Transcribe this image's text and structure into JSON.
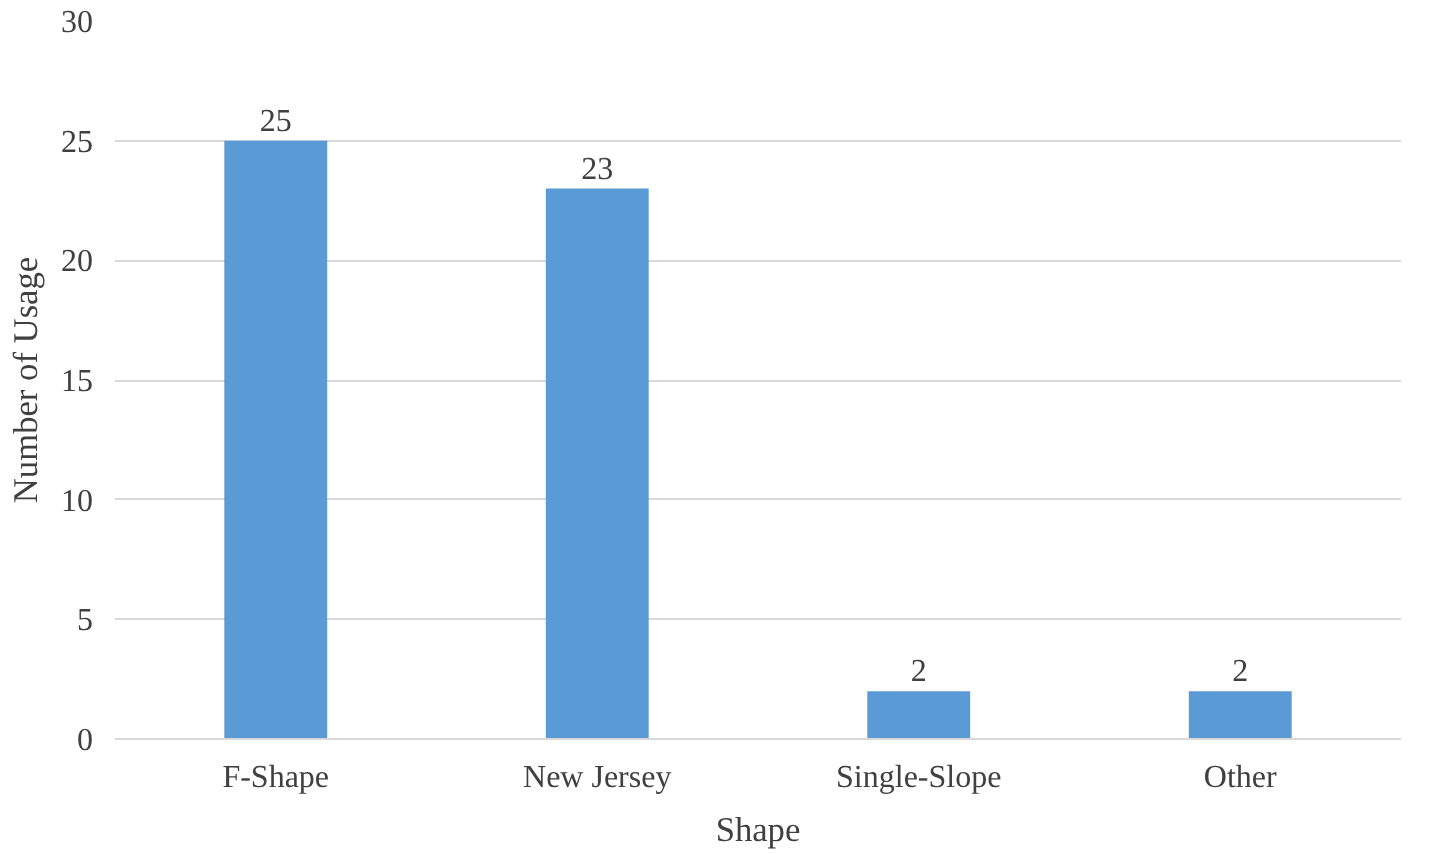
{
  "chart_data": {
    "type": "bar",
    "xlabel": "Shape",
    "ylabel": "Number of Usage",
    "categories": [
      "F-Shape",
      "New Jersey",
      "Single-Slope",
      "Other"
    ],
    "values": [
      25,
      23,
      2,
      2
    ],
    "color": "#5b9bd5",
    "ylim": [
      0,
      30
    ],
    "yticks": [
      0,
      5,
      10,
      15,
      20,
      25,
      30
    ],
    "grid": "y",
    "data_labels": true
  }
}
